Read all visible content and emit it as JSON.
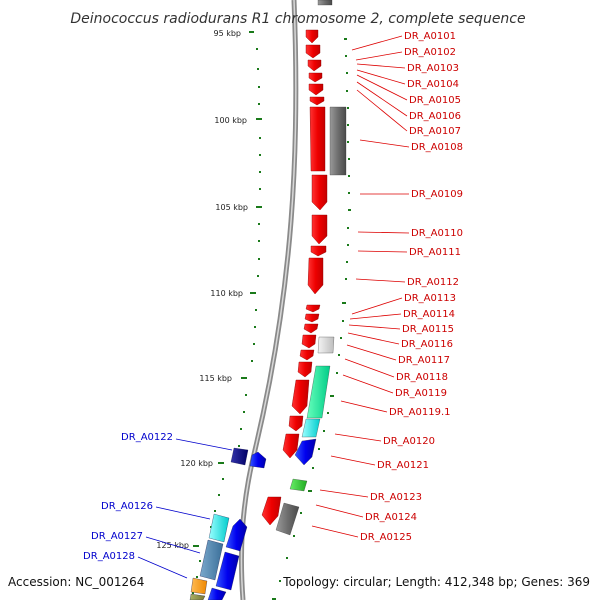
{
  "title": "Deinococcus radiodurans R1 chromosome 2, complete sequence",
  "accession": "Accession: NC_001264",
  "topology": "Topology: circular; Length: 412,348 bp; Genes: 369",
  "colors": {
    "forward": "#ff0000",
    "reverse": "#0000ee",
    "right_label": "#cc0000",
    "left_label": "#0000cc",
    "tick": "#1a7a1a",
    "backbone": "#888888"
  },
  "ticks": [
    "95 kbp",
    "100 kbp",
    "105 kbp",
    "110 kbp",
    "115 kbp",
    "120 kbp",
    "125 kbp"
  ],
  "right_genes": [
    "DR_A0101",
    "DR_A0102",
    "DR_A0103",
    "DR_A0104",
    "DR_A0105",
    "DR_A0106",
    "DR_A0107",
    "DR_A0108",
    "DR_A0109",
    "DR_A0110",
    "DR_A0111",
    "DR_A0112",
    "DR_A0113",
    "DR_A0114",
    "DR_A0115",
    "DR_A0116",
    "DR_A0117",
    "DR_A0118",
    "DR_A0119",
    "DR_A0119.1",
    "DR_A0120",
    "DR_A0121",
    "DR_A0123",
    "DR_A0124",
    "DR_A0125"
  ],
  "left_genes": [
    "DR_A0122",
    "DR_A0126",
    "DR_A0127",
    "DR_A0128"
  ]
}
